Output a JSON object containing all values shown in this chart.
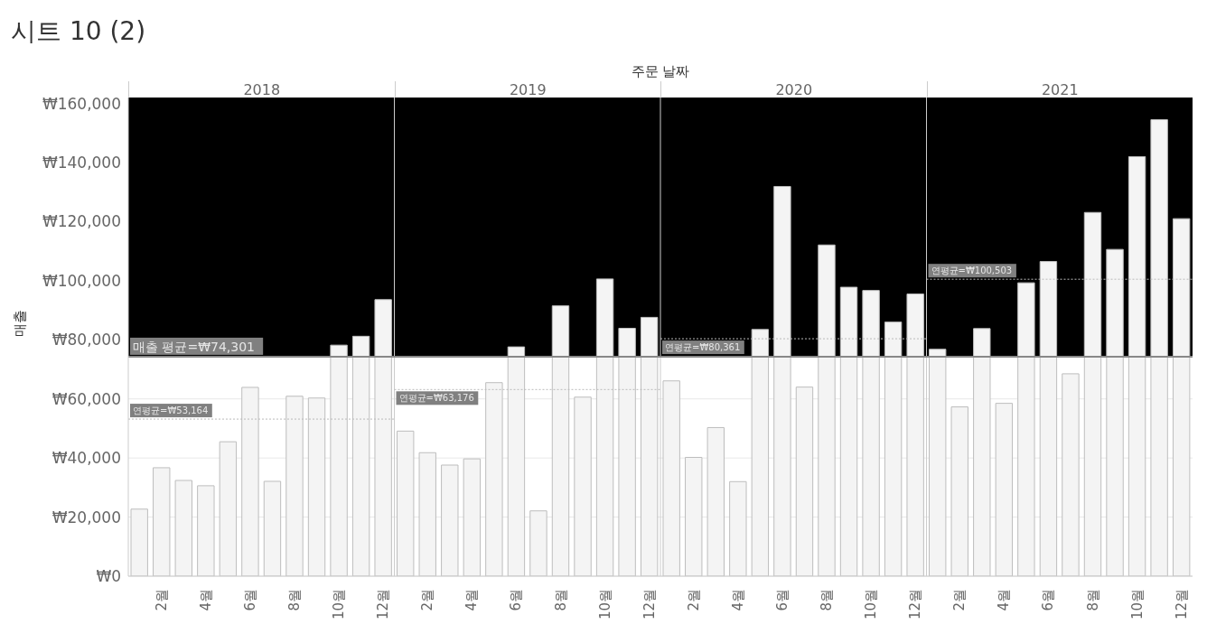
{
  "chart_data": {
    "type": "bar",
    "title": "시트 10 (2)",
    "xlabel": "주문 날짜",
    "ylabel": "매출",
    "categories": [
      null,
      "2월",
      null,
      "4월",
      null,
      "6월",
      null,
      "8월",
      null,
      "10월",
      null,
      "12월",
      null,
      "2월",
      null,
      "4월",
      null,
      "6월",
      null,
      "8월",
      null,
      "10월",
      null,
      "12월",
      null,
      "2월",
      null,
      "4월",
      null,
      "6월",
      null,
      "8월",
      null,
      "10월",
      null,
      "12월",
      null,
      "2월",
      null,
      "4월",
      null,
      "6월",
      null,
      "8월",
      null,
      "10월",
      null,
      "12월"
    ],
    "values": [
      22700,
      36700,
      32400,
      30600,
      45500,
      63900,
      32100,
      60900,
      60300,
      78200,
      81200,
      93600,
      49100,
      41800,
      37600,
      39700,
      65500,
      77600,
      22100,
      91500,
      60600,
      100600,
      83900,
      87600,
      66100,
      40200,
      50300,
      32000,
      83500,
      131900,
      64000,
      112100,
      97800,
      96700,
      86000,
      95500,
      76800,
      57300,
      83800,
      58500,
      99300,
      106500,
      68500,
      123100,
      110600,
      142000,
      154500,
      121000
    ],
    "color": "#f4f4f4",
    "annotations": [
      "2018",
      "2019",
      "2020",
      "2021"
    ],
    "ylim": [
      0,
      162000
    ],
    "yticks": [
      {
        "value": 0,
        "label": "₩0"
      },
      {
        "value": 20000,
        "label": "₩20,000"
      },
      {
        "value": 40000,
        "label": "₩40,000"
      },
      {
        "value": 60000,
        "label": "₩60,000"
      },
      {
        "value": 80000,
        "label": "₩80,000"
      },
      {
        "value": 100000,
        "label": "₩100,000"
      },
      {
        "value": 120000,
        "label": "₩120,000"
      },
      {
        "value": 140000,
        "label": "₩140,000"
      },
      {
        "value": 160000,
        "label": "₩160,000"
      }
    ],
    "ref_lines": [
      {
        "axis": "y",
        "value": 74301,
        "label": "매출 평균=₩74,301",
        "line_style": "solid"
      },
      {
        "axis": "y",
        "value": 53164,
        "label": "연평균=₩53,164",
        "line_style": "dotted"
      },
      {
        "axis": "y",
        "value": 63176,
        "label": "연평균=₩63,176",
        "line_style": "dotted"
      },
      {
        "axis": "y",
        "value": 80361,
        "label": "연평균=₩80,361",
        "line_style": "dotted"
      },
      {
        "axis": "y",
        "value": 100503,
        "label": "연평균=₩100,503",
        "line_style": "dotted"
      }
    ],
    "bands": [
      {
        "axis": "y",
        "from": 74301,
        "to": 162000,
        "color": "#000000"
      }
    ],
    "grid": "y",
    "legend": false
  }
}
